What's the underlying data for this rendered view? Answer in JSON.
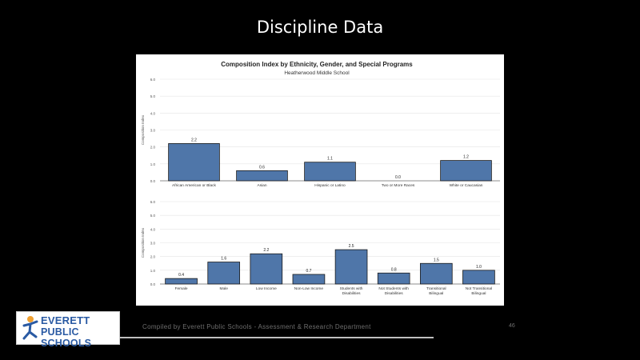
{
  "slide": {
    "title": "Discipline Data",
    "footer": "Compiled by Everett Public Schools - Assessment & Research Department",
    "page_number": "46"
  },
  "logo": {
    "line1": "EVERETT",
    "line2": "PUBLIC SCHOOLS",
    "icon": "running-figure-icon",
    "colors": {
      "text": "#2a5aa3",
      "figure": "#f0a030"
    }
  },
  "colors": {
    "bar": "#4f76a9",
    "background": "#000000",
    "panel": "#ffffff"
  },
  "chart_data": [
    {
      "type": "bar",
      "title": "Composition Index by Ethnicity, Gender, and Special Programs",
      "subtitle": "Heatherwood Middle School",
      "ylabel": "Composition Index",
      "yticks": [
        "0.0",
        "1.0",
        "2.0",
        "3.0",
        "4.0",
        "5.0",
        "6.0"
      ],
      "ylim": [
        0,
        6
      ],
      "grid": true,
      "categories": [
        "African American or Black",
        "Asian",
        "Hispanic or Latino",
        "Two or More Races",
        "White or Caucasian"
      ],
      "values": [
        2.2,
        0.6,
        1.1,
        0.0,
        1.2
      ],
      "value_labels": [
        "2.2",
        "0.6",
        "1.1",
        "0.0",
        "1.2"
      ]
    },
    {
      "type": "bar",
      "ylabel": "Composition Index",
      "yticks": [
        "0.0",
        "1.0",
        "2.0",
        "3.0",
        "4.0",
        "5.0",
        "6.0"
      ],
      "ylim": [
        0,
        6
      ],
      "grid": true,
      "categories": [
        "Female",
        "Male",
        "Low Income",
        "Non-Low Income",
        "Students with Disabilities",
        "Not Students with Disabilities",
        "Transitional Bilingual",
        "Not Transitional Bilingual"
      ],
      "values": [
        0.4,
        1.6,
        2.2,
        0.7,
        2.5,
        0.8,
        1.5,
        1.0
      ],
      "value_labels": [
        "0.4",
        "1.6",
        "2.2",
        "0.7",
        "2.5",
        "0.8",
        "1.5",
        "1.0"
      ]
    }
  ]
}
